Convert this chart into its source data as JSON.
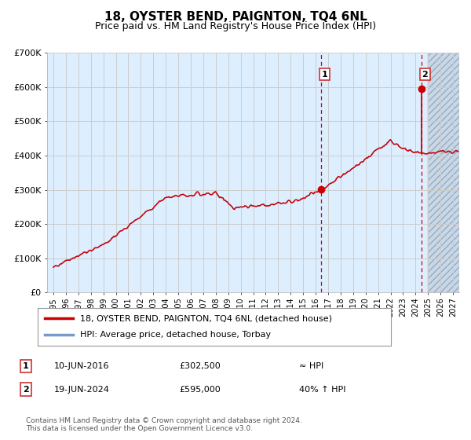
{
  "title": "18, OYSTER BEND, PAIGNTON, TQ4 6NL",
  "subtitle": "Price paid vs. HM Land Registry's House Price Index (HPI)",
  "title_fontsize": 11,
  "subtitle_fontsize": 9,
  "ylim": [
    0,
    700000
  ],
  "yticks": [
    0,
    100000,
    200000,
    300000,
    400000,
    500000,
    600000,
    700000
  ],
  "ytick_labels": [
    "£0",
    "£100K",
    "£200K",
    "£300K",
    "£400K",
    "£500K",
    "£600K",
    "£700K"
  ],
  "xmin_year": 1995,
  "xmax_year": 2027,
  "xticks": [
    1995,
    1996,
    1997,
    1998,
    1999,
    2000,
    2001,
    2002,
    2003,
    2004,
    2005,
    2006,
    2007,
    2008,
    2009,
    2010,
    2011,
    2012,
    2013,
    2014,
    2015,
    2016,
    2017,
    2018,
    2019,
    2020,
    2021,
    2022,
    2023,
    2024,
    2025,
    2026,
    2027
  ],
  "line_color": "#cc0000",
  "hpi_line_color": "#7799cc",
  "bg_color": "#ddeeff",
  "grid_color": "#cccccc",
  "sale1_x": 2016.44,
  "sale1_y": 302500,
  "sale1_label": "1",
  "sale1_date": "10-JUN-2016",
  "sale1_price": "£302,500",
  "sale1_hpi": "≈ HPI",
  "sale2_x": 2024.46,
  "sale2_y": 595000,
  "sale2_label": "2",
  "sale2_date": "19-JUN-2024",
  "sale2_price": "£595,000",
  "sale2_hpi": "40% ↑ HPI",
  "legend_line1": "18, OYSTER BEND, PAIGNTON, TQ4 6NL (detached house)",
  "legend_line2": "HPI: Average price, detached house, Torbay",
  "footer": "Contains HM Land Registry data © Crown copyright and database right 2024.\nThis data is licensed under the Open Government Licence v3.0.",
  "future_start_year": 2025.0
}
